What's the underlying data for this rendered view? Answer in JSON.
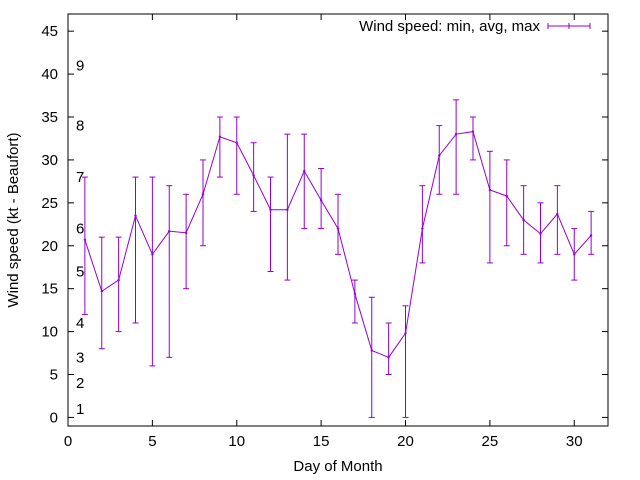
{
  "chart_data": {
    "type": "line",
    "title": "",
    "xlabel": "Day of Month",
    "ylabel": "Wind speed (kt - Beaufort)",
    "xlim": [
      0,
      32
    ],
    "ylim": [
      -1,
      47
    ],
    "xticks": [
      0,
      5,
      10,
      15,
      20,
      25,
      30
    ],
    "yticks": [
      0,
      5,
      10,
      15,
      20,
      25,
      30,
      35,
      40,
      45
    ],
    "grid": false,
    "legend_position": "top-right",
    "series_color": "#9400d3",
    "series": [
      {
        "name": "Wind speed: min, avg, max",
        "x": [
          1,
          2,
          3,
          4,
          5,
          6,
          7,
          8,
          9,
          10,
          11,
          12,
          13,
          14,
          15,
          16,
          17,
          18,
          19,
          20,
          21,
          22,
          23,
          24,
          25,
          26,
          27,
          28,
          29,
          30,
          31
        ],
        "avg": [
          20.7,
          14.7,
          16,
          23.5,
          19,
          21.7,
          21.5,
          26,
          32.7,
          32,
          28.2,
          24.2,
          24.2,
          28.7,
          25.3,
          22,
          14.4,
          7.8,
          7,
          9.8,
          22,
          30.5,
          33,
          33.3,
          26.5,
          25.8,
          23,
          21.4,
          23.7,
          19,
          21.2
        ],
        "min": [
          12,
          8,
          10,
          11,
          6,
          7,
          15,
          20,
          28,
          26,
          24,
          17,
          16,
          22,
          22,
          19,
          11,
          0,
          5,
          0,
          18,
          26,
          26,
          30,
          18,
          20,
          19,
          18,
          19,
          16,
          19
        ],
        "max": [
          28,
          21,
          21,
          28,
          28,
          27,
          26,
          30,
          35,
          35,
          32,
          28,
          33,
          33,
          29,
          26,
          16,
          14,
          11,
          13,
          27,
          34,
          37,
          35,
          31,
          30,
          27,
          25,
          27,
          22,
          24
        ]
      }
    ],
    "beaufort_labels": [
      {
        "label": "1",
        "y": 1
      },
      {
        "label": "2",
        "y": 4
      },
      {
        "label": "3",
        "y": 7
      },
      {
        "label": "4",
        "y": 11
      },
      {
        "label": "5",
        "y": 17
      },
      {
        "label": "6",
        "y": 22
      },
      {
        "label": "7",
        "y": 28
      },
      {
        "label": "8",
        "y": 34
      },
      {
        "label": "9",
        "y": 41
      }
    ]
  }
}
